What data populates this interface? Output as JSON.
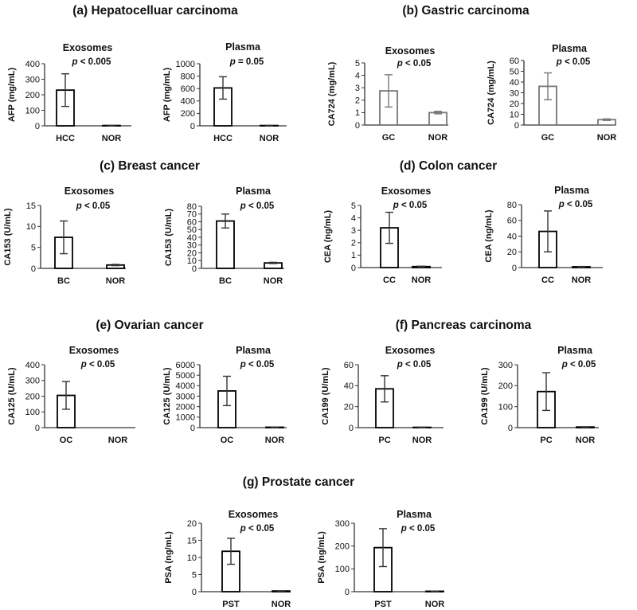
{
  "sections": [
    {
      "id": "a",
      "title": "(a) Hepatocelluar carcinoma"
    },
    {
      "id": "b",
      "title": "(b) Gastric carcinoma"
    },
    {
      "id": "c",
      "title": "(c) Breast cancer"
    },
    {
      "id": "d",
      "title": "(d) Colon cancer"
    },
    {
      "id": "e",
      "title": "(e) Ovarian cancer"
    },
    {
      "id": "f",
      "title": "(f) Pancreas carcinoma"
    },
    {
      "id": "g",
      "title": "(g) Prostate cancer"
    }
  ],
  "chart_data": [
    {
      "id": "a-exo",
      "type": "bar",
      "title": "Exosomes",
      "pvalue": "p < 0.005",
      "ylabel": "AFP (mg/mL)",
      "ylim": [
        0,
        400
      ],
      "yticks": [
        0,
        100,
        200,
        300,
        400
      ],
      "categories": [
        "HCC",
        "NOR"
      ],
      "values": [
        230,
        2
      ],
      "errors": [
        105,
        1
      ],
      "color": "#000000"
    },
    {
      "id": "a-pla",
      "type": "bar",
      "title": "Plasma",
      "pvalue": "p = 0.05",
      "ylabel": "AFP (mg/mL)",
      "ylim": [
        0,
        1000
      ],
      "yticks": [
        0,
        200,
        400,
        600,
        800,
        1000
      ],
      "categories": [
        "HCC",
        "NOR"
      ],
      "values": [
        610,
        5
      ],
      "errors": [
        180,
        2
      ],
      "color": "#000000"
    },
    {
      "id": "b-exo",
      "type": "bar",
      "title": "Exosomes",
      "pvalue": "p < 0.05",
      "ylabel": "CA724 (mg/mL)",
      "ylim": [
        0,
        5
      ],
      "yticks": [
        0,
        1,
        2,
        3,
        4,
        5
      ],
      "categories": [
        "GC",
        "NOR"
      ],
      "values": [
        2.75,
        1.0
      ],
      "errors": [
        1.3,
        0.1
      ],
      "color": "#777777"
    },
    {
      "id": "b-pla",
      "type": "bar",
      "title": "Plasma",
      "pvalue": "p < 0.05",
      "ylabel": "CA724 (mg/mL)",
      "ylim": [
        0,
        60
      ],
      "yticks": [
        0,
        10,
        20,
        30,
        40,
        50,
        60
      ],
      "categories": [
        "GC",
        "NOR"
      ],
      "values": [
        36,
        5
      ],
      "errors": [
        12.5,
        0.7
      ],
      "color": "#777777"
    },
    {
      "id": "c-exo",
      "type": "bar",
      "title": "Exosomes",
      "pvalue": "p < 0.05",
      "ylabel": "CA153 (U/mL)",
      "ylim": [
        0,
        15
      ],
      "yticks": [
        0,
        5,
        10,
        15
      ],
      "categories": [
        "BC",
        "NOR"
      ],
      "values": [
        7.4,
        0.8
      ],
      "errors": [
        3.9,
        0.15
      ],
      "color": "#000000"
    },
    {
      "id": "c-pla",
      "type": "bar",
      "title": "Plasma",
      "pvalue": "p < 0.05",
      "ylabel": "CA153 (U/mL)",
      "ylim": [
        0,
        80
      ],
      "yticks": [
        0,
        10,
        20,
        30,
        40,
        50,
        60,
        70,
        80
      ],
      "categories": [
        "BC",
        "NOR"
      ],
      "values": [
        61,
        7
      ],
      "errors": [
        9,
        0.8
      ],
      "color": "#000000"
    },
    {
      "id": "d-exo",
      "type": "bar",
      "title": "Exosomes",
      "pvalue": "p < 0.05",
      "ylabel": "CEA (ng/mL)",
      "ylim": [
        0,
        5
      ],
      "yticks": [
        0,
        1,
        2,
        3,
        4,
        5
      ],
      "categories": [
        "CC",
        "NOR"
      ],
      "values": [
        3.2,
        0.08
      ],
      "errors": [
        1.25,
        0.03
      ],
      "color": "#000000"
    },
    {
      "id": "d-pla",
      "type": "bar",
      "title": "Plasma",
      "pvalue": "p < 0.05",
      "ylabel": "CEA (ng/mL)",
      "ylim": [
        0,
        80
      ],
      "yticks": [
        0,
        20,
        40,
        60,
        80
      ],
      "categories": [
        "CC",
        "NOR"
      ],
      "values": [
        46,
        1
      ],
      "errors": [
        26,
        0.4
      ],
      "color": "#000000"
    },
    {
      "id": "e-exo",
      "type": "bar",
      "title": "Exosomes",
      "pvalue": "p < 0.05",
      "ylabel": "CA125 (U/mL)",
      "ylim": [
        0,
        400
      ],
      "yticks": [
        0,
        100,
        200,
        300,
        400
      ],
      "categories": [
        "OC",
        "NOR"
      ],
      "values": [
        205,
        0
      ],
      "errors": [
        88,
        0
      ],
      "color": "#000000"
    },
    {
      "id": "e-pla",
      "type": "bar",
      "title": "Plasma",
      "pvalue": "p < 0.05",
      "ylabel": "CA125 (U/mL)",
      "ylim": [
        0,
        6000
      ],
      "yticks": [
        0,
        1000,
        2000,
        3000,
        4000,
        5000,
        6000
      ],
      "categories": [
        "OC",
        "NOR"
      ],
      "values": [
        3500,
        40
      ],
      "errors": [
        1400,
        10
      ],
      "color": "#000000"
    },
    {
      "id": "f-exo",
      "type": "bar",
      "title": "Exosomes",
      "pvalue": "p < 0.05",
      "ylabel": "CA199 (U/mL)",
      "ylim": [
        0,
        60
      ],
      "yticks": [
        0,
        20,
        40,
        60
      ],
      "categories": [
        "PC",
        "NOR"
      ],
      "values": [
        37,
        0.3
      ],
      "errors": [
        12.5,
        0.1
      ],
      "color": "#000000"
    },
    {
      "id": "f-pla",
      "type": "bar",
      "title": "Plasma",
      "pvalue": "p < 0.05",
      "ylabel": "CA199 (U/mL)",
      "ylim": [
        0,
        300
      ],
      "yticks": [
        0,
        100,
        200,
        300
      ],
      "categories": [
        "PC",
        "NOR"
      ],
      "values": [
        172,
        3
      ],
      "errors": [
        90,
        1
      ],
      "color": "#000000"
    },
    {
      "id": "g-exo",
      "type": "bar",
      "title": "Exosomes",
      "pvalue": "p < 0.05",
      "ylabel": "PSA (ng/mL)",
      "ylim": [
        0,
        20
      ],
      "yticks": [
        0,
        5,
        10,
        15,
        20
      ],
      "categories": [
        "PST",
        "NOR"
      ],
      "values": [
        11.8,
        0.2
      ],
      "errors": [
        3.8,
        0.05
      ],
      "color": "#000000"
    },
    {
      "id": "g-pla",
      "type": "bar",
      "title": "Plasma",
      "pvalue": "p < 0.05",
      "ylabel": "PSA (ng/mL)",
      "ylim": [
        0,
        300
      ],
      "yticks": [
        0,
        100,
        200,
        300
      ],
      "categories": [
        "PST",
        "NOR"
      ],
      "values": [
        193,
        2
      ],
      "errors": [
        83,
        0.5
      ],
      "color": "#000000"
    }
  ]
}
